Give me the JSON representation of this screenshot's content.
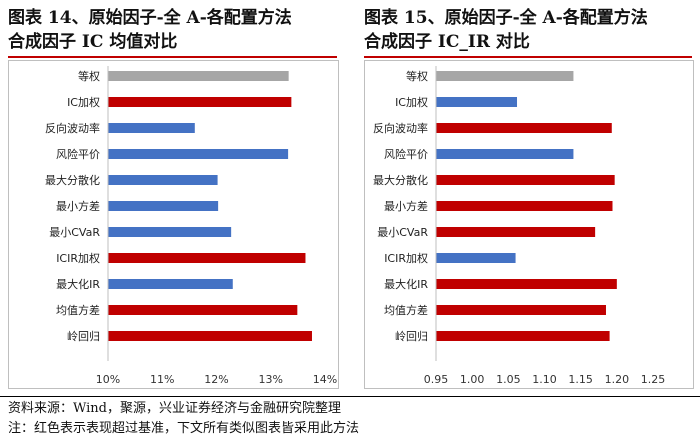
{
  "titles": {
    "left": [
      "图表 14、原始因子-全 A-各配置方法",
      "合成因子 IC 均值对比"
    ],
    "right": [
      "图表 15、原始因子-全 A-各配置方法",
      "合成因子 IC_IR 对比"
    ]
  },
  "notes": {
    "source": "资料来源：Wind，聚源，兴业证券经济与金融研究院整理",
    "remark": "注：红色表示表现超过基准，下文所有类似图表皆采用此方法"
  },
  "colors": {
    "benchmark": "#a6a6a6",
    "better": "#c00000",
    "worse": "#4472c4",
    "title_rule": "#c00000"
  },
  "chart_data": [
    {
      "type": "bar",
      "orientation": "horizontal",
      "categories": [
        "等权",
        "IC加权",
        "反向波动率",
        "风险平价",
        "最大分散化",
        "最小方差",
        "最小CVaR",
        "ICIR加权",
        "最大化IR",
        "均值方差",
        "岭回归"
      ],
      "values": [
        0.1333,
        0.1338,
        0.116,
        0.1332,
        0.1202,
        0.1203,
        0.1227,
        0.1364,
        0.123,
        0.1349,
        0.1376
      ],
      "status": [
        "benchmark",
        "better",
        "worse",
        "worse",
        "worse",
        "worse",
        "worse",
        "better",
        "worse",
        "better",
        "better"
      ],
      "xlim": [
        0.1,
        0.14
      ],
      "xticks": [
        "10%",
        "11%",
        "12%",
        "13%",
        "14%"
      ],
      "xtick_values": [
        0.1,
        0.11,
        0.12,
        0.13,
        0.14
      ],
      "grid": false
    },
    {
      "type": "bar",
      "orientation": "horizontal",
      "categories": [
        "等权",
        "IC加权",
        "反向波动率",
        "风险平价",
        "最大分散化",
        "最小方差",
        "最小CVaR",
        "ICIR加权",
        "最大化IR",
        "均值方差",
        "岭回归"
      ],
      "values": [
        1.14,
        1.062,
        1.193,
        1.14,
        1.197,
        1.194,
        1.17,
        1.06,
        1.2,
        1.185,
        1.19
      ],
      "status": [
        "benchmark",
        "worse",
        "better",
        "worse",
        "better",
        "better",
        "better",
        "worse",
        "better",
        "better",
        "better"
      ],
      "xlim": [
        0.95,
        1.25
      ],
      "xticks": [
        "0.95",
        "1.00",
        "1.05",
        "1.10",
        "1.15",
        "1.20",
        "1.25"
      ],
      "xtick_values": [
        0.95,
        1.0,
        1.05,
        1.1,
        1.15,
        1.2,
        1.25
      ],
      "grid": false
    }
  ]
}
